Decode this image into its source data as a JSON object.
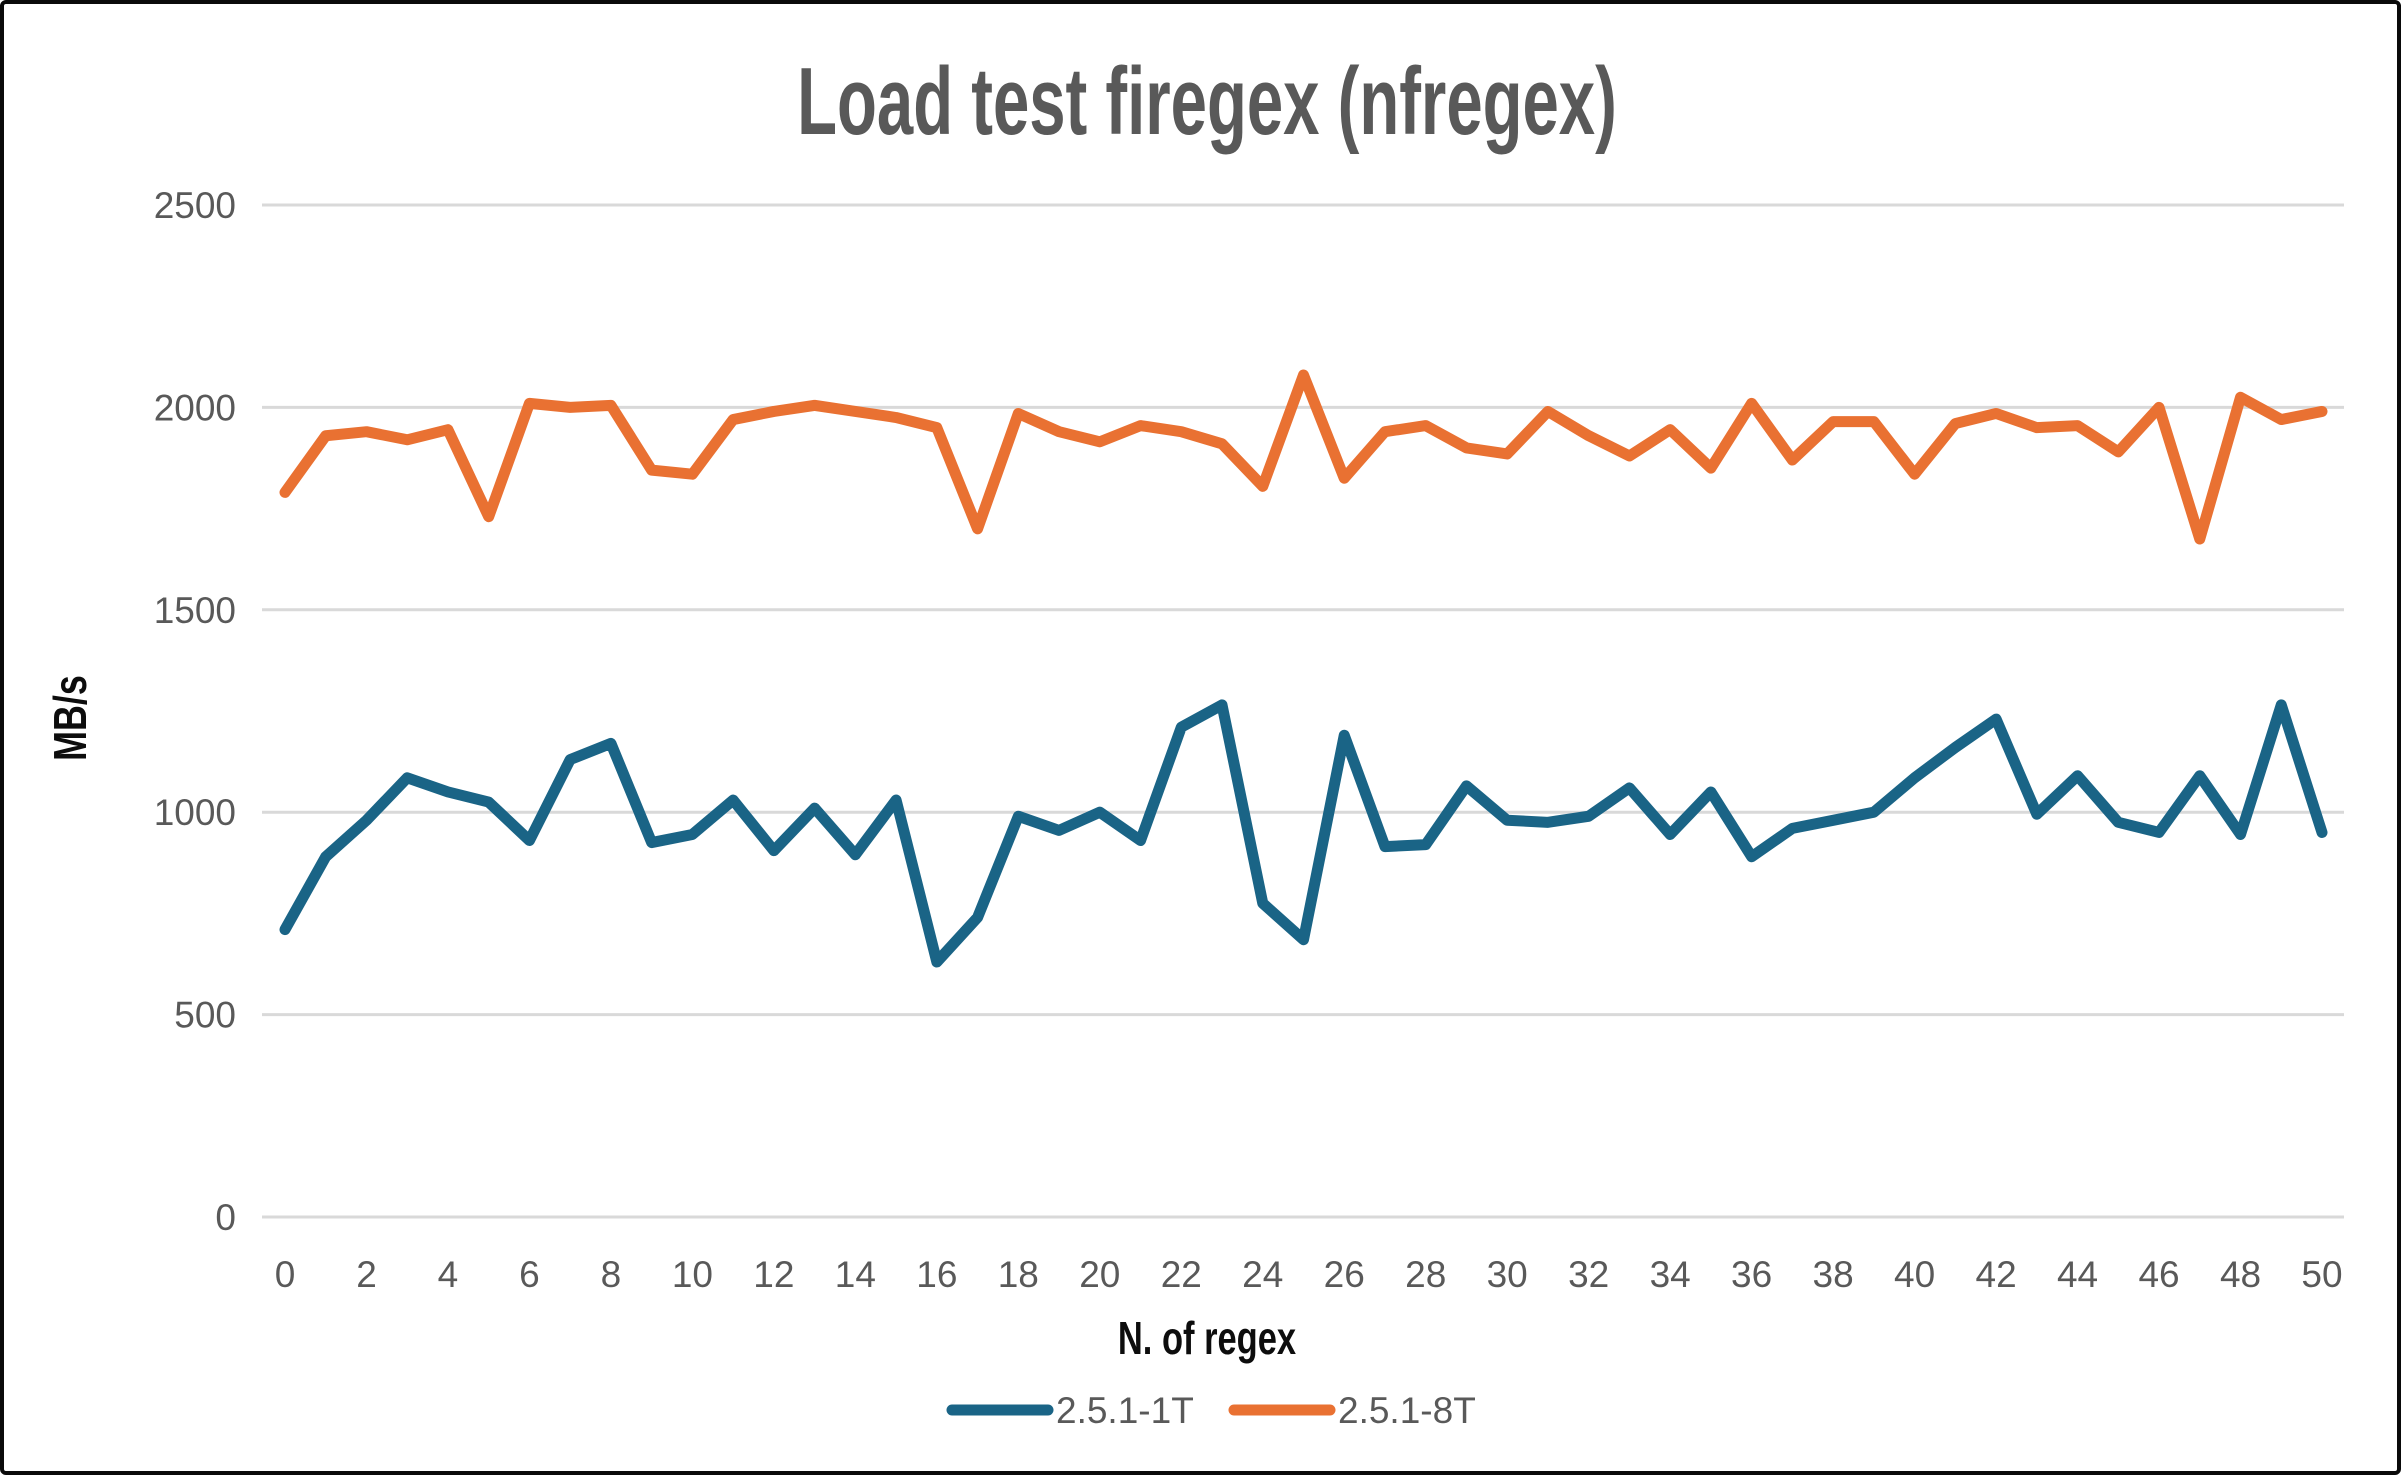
{
  "chart_data": {
    "type": "line",
    "title": "Load test firegex (nfregex)",
    "xlabel": "N. of regex",
    "ylabel": "MB/s",
    "x": [
      0,
      1,
      2,
      3,
      4,
      5,
      6,
      7,
      8,
      9,
      10,
      11,
      12,
      13,
      14,
      15,
      16,
      17,
      18,
      19,
      20,
      21,
      22,
      23,
      24,
      25,
      26,
      27,
      28,
      29,
      30,
      31,
      32,
      33,
      34,
      35,
      36,
      37,
      38,
      39,
      40,
      41,
      42,
      43,
      44,
      45,
      46,
      47,
      48,
      49,
      50
    ],
    "series": [
      {
        "name": "2.5.1-1T",
        "color": "#1A6486",
        "values": [
          710,
          890,
          980,
          1085,
          1050,
          1025,
          930,
          1130,
          1170,
          925,
          945,
          1030,
          905,
          1010,
          895,
          1030,
          630,
          740,
          990,
          955,
          1000,
          930,
          1210,
          1265,
          775,
          685,
          1190,
          915,
          920,
          1065,
          980,
          975,
          990,
          1060,
          945,
          1050,
          890,
          960,
          980,
          1000,
          1085,
          1160,
          1230,
          995,
          1090,
          975,
          950,
          1090,
          945,
          1265,
          950
        ]
      },
      {
        "name": "2.5.1-8T",
        "color": "#E97132",
        "values": [
          1790,
          1930,
          1940,
          1920,
          1945,
          1730,
          2010,
          2000,
          2005,
          1845,
          1835,
          1970,
          1990,
          2005,
          1990,
          1975,
          1950,
          1700,
          1985,
          1940,
          1915,
          1955,
          1940,
          1910,
          1805,
          2080,
          1825,
          1940,
          1955,
          1900,
          1885,
          1990,
          1930,
          1880,
          1945,
          1850,
          2010,
          1870,
          1965,
          1965,
          1835,
          1960,
          1985,
          1950,
          1955,
          1890,
          2000,
          1675,
          2025,
          1970,
          1990
        ]
      }
    ],
    "ylim": [
      0,
      2500
    ],
    "ytick_interval": 500,
    "xtick_interval": 2,
    "grid": true,
    "gridline_color": "#D9D9D9",
    "legend_position": "bottom"
  }
}
